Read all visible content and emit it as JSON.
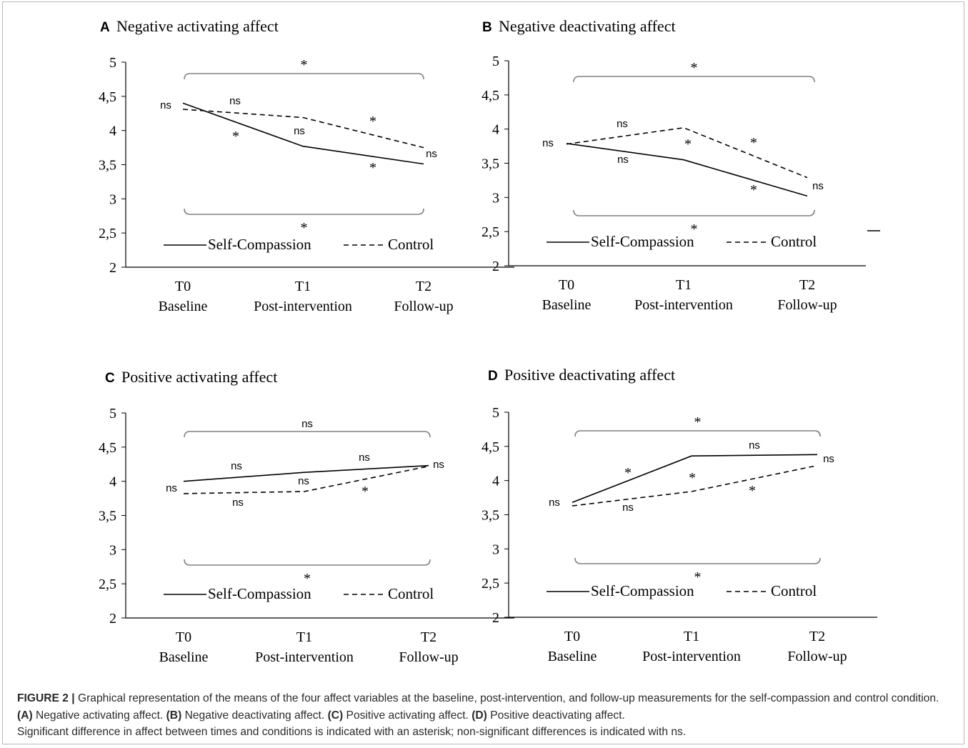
{
  "chart_data": [
    {
      "type": "line",
      "panel": "A",
      "title": "Negative activating affect",
      "categories": [
        [
          "T0",
          "Baseline"
        ],
        [
          "T1",
          "Post-intervention"
        ],
        [
          "T2",
          "Follow-up"
        ]
      ],
      "ylim": [
        2,
        5
      ],
      "yticks": [
        "2",
        "2,5",
        "3",
        "3,5",
        "4",
        "4,5",
        "5"
      ],
      "legend_position": "bottom",
      "series": [
        {
          "name": "Self-Compassion",
          "style": "solid",
          "values": [
            4.4,
            3.77,
            3.51
          ]
        },
        {
          "name": "Control",
          "style": "dashed",
          "values": [
            4.31,
            4.19,
            3.75
          ]
        }
      ],
      "annotations": {
        "top_bracket": "*",
        "bottom_bracket": "*",
        "t0": "ns",
        "t2": "ns",
        "sc_t0_t1": "*",
        "ctrl_t0_t1": "ns",
        "sc_t1_t2": "*",
        "ctrl_t1_t2": "*",
        "t1": "ns"
      }
    },
    {
      "type": "line",
      "panel": "B",
      "title": "Negative deactivating affect",
      "categories": [
        [
          "T0",
          "Baseline"
        ],
        [
          "T1",
          "Post-intervention"
        ],
        [
          "T2",
          "Follow-up"
        ]
      ],
      "ylim": [
        2,
        5
      ],
      "yticks": [
        "2",
        "2,5",
        "3",
        "3,5",
        "4",
        "4,5",
        "5"
      ],
      "legend_position": "bottom",
      "series": [
        {
          "name": "Self-Compassion",
          "style": "solid",
          "values": [
            3.79,
            3.55,
            3.02
          ]
        },
        {
          "name": "Control",
          "style": "dashed",
          "values": [
            3.78,
            4.02,
            3.29
          ]
        }
      ],
      "annotations": {
        "top_bracket": "*",
        "bottom_bracket": "*",
        "t0": "ns",
        "t2": "ns",
        "sc_t0_t1": "ns",
        "ctrl_t0_t1": "ns",
        "sc_t1_t2": "*",
        "ctrl_t1_t2": "*",
        "t1": "*"
      }
    },
    {
      "type": "line",
      "panel": "C",
      "title": "Positive activating affect",
      "categories": [
        [
          "T0",
          "Baseline"
        ],
        [
          "T1",
          "Post-intervention"
        ],
        [
          "T2",
          "Follow-up"
        ]
      ],
      "ylim": [
        2,
        5
      ],
      "yticks": [
        "2",
        "2,5",
        "3",
        "3,5",
        "4",
        "4,5",
        "5"
      ],
      "legend_position": "bottom",
      "series": [
        {
          "name": "Self-Compassion",
          "style": "solid",
          "values": [
            4.0,
            4.13,
            4.23
          ]
        },
        {
          "name": "Control",
          "style": "dashed",
          "values": [
            3.82,
            3.85,
            4.22
          ]
        }
      ],
      "annotations": {
        "top_bracket": "ns",
        "bottom_bracket": "*",
        "t0": "ns",
        "t2": "ns",
        "sc_t0_t1": "ns",
        "ctrl_t0_t1": "ns",
        "sc_t1_t2": "ns",
        "ctrl_t1_t2": "*",
        "t1": "ns"
      }
    },
    {
      "type": "line",
      "panel": "D",
      "title": "Positive deactivating affect",
      "categories": [
        [
          "T0",
          "Baseline"
        ],
        [
          "T1",
          "Post-intervention"
        ],
        [
          "T2",
          "Follow-up"
        ]
      ],
      "ylim": [
        2,
        5
      ],
      "yticks": [
        "2",
        "2,5",
        "3",
        "3,5",
        "4",
        "4,5",
        "5"
      ],
      "legend_position": "bottom",
      "series": [
        {
          "name": "Self-Compassion",
          "style": "solid",
          "values": [
            3.68,
            4.36,
            4.38
          ]
        },
        {
          "name": "Control",
          "style": "dashed",
          "values": [
            3.63,
            3.84,
            4.22
          ]
        }
      ],
      "annotations": {
        "top_bracket": "*",
        "bottom_bracket": "*",
        "t0": "ns",
        "t2": "ns",
        "sc_t0_t1": "*",
        "ctrl_t0_t1": "ns",
        "sc_t1_t2": "ns",
        "ctrl_t1_t2": "*",
        "t1": "*"
      }
    }
  ],
  "caption": {
    "label": "FIGURE 2 |",
    "text1": " Graphical representation of the means of the four affect variables at the baseline, post-intervention, and follow-up measurements for the self-compassion and control condition. ",
    "a_label": "(A)",
    "a_text": " Negative activating affect. ",
    "b_label": "(B)",
    "b_text": " Negative deactivating affect. ",
    "c_label": "(C)",
    "c_text": " Positive activating affect. ",
    "d_label": "(D)",
    "d_text": " Positive deactivating affect. ",
    "text2": "Significant difference in affect between times and conditions is indicated with an asterisk; non-significant differences is indicated with ns."
  },
  "colors": {
    "line": "#000000",
    "bracket": "#808080",
    "axis": "#000000",
    "caption_text": "#2a2a2a"
  }
}
